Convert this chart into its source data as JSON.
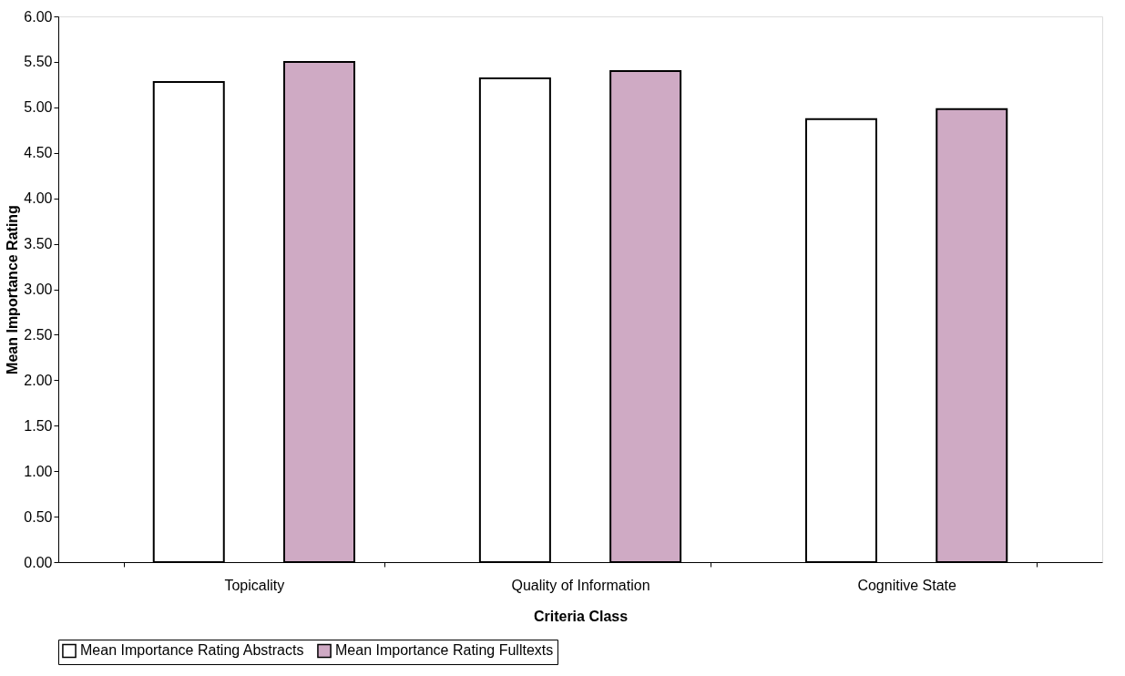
{
  "chart_data": {
    "type": "bar",
    "xlabel": "Criteria Class",
    "ylabel": "Mean Importance Rating",
    "categories": [
      "Topicality",
      "Quality of Information",
      "Cognitive State"
    ],
    "series": [
      {
        "name": "Mean Importance Rating Abstracts",
        "color": "#ffffff",
        "values": [
          5.28,
          5.32,
          4.87
        ]
      },
      {
        "name": "Mean Importance Rating Fulltexts",
        "color": "#cfaac4",
        "values": [
          5.5,
          5.4,
          4.98
        ]
      }
    ],
    "ylim": [
      0,
      6
    ],
    "yticks": [
      {
        "value": 0,
        "label": "0.00"
      },
      {
        "value": 0.5,
        "label": "0.50"
      },
      {
        "value": 1,
        "label": "1.00"
      },
      {
        "value": 1.5,
        "label": "1.50"
      },
      {
        "value": 2,
        "label": "2.00"
      },
      {
        "value": 2.5,
        "label": "2.50"
      },
      {
        "value": 3,
        "label": "3.00"
      },
      {
        "value": 3.5,
        "label": "3.50"
      },
      {
        "value": 4,
        "label": "4.00"
      },
      {
        "value": 4.5,
        "label": "4.50"
      },
      {
        "value": 5,
        "label": "5.00"
      },
      {
        "value": 5.5,
        "label": "5.50"
      },
      {
        "value": 6,
        "label": "6.00"
      }
    ],
    "grid": false,
    "legend": "bottom"
  }
}
